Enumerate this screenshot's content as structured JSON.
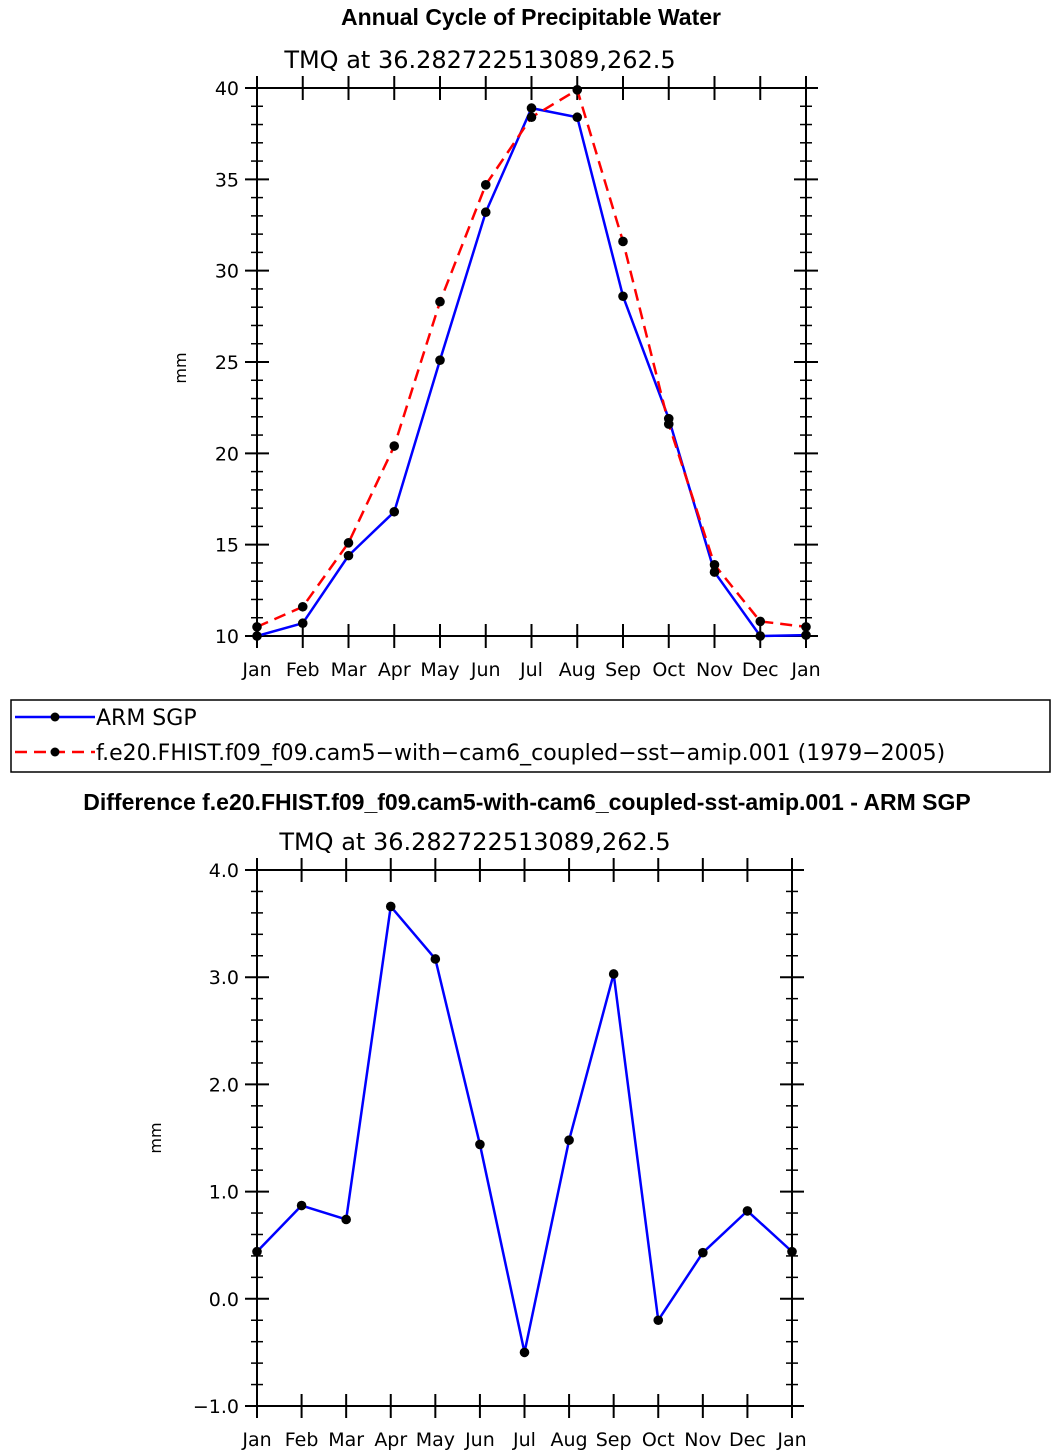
{
  "chart_data": [
    {
      "type": "line",
      "title": "Annual Cycle of Precipitable Water",
      "subtitle": "TMQ at 36.282722513089,262.5",
      "xlabel": "",
      "ylabel": "mm",
      "categories": [
        "Jan",
        "Feb",
        "Mar",
        "Apr",
        "May",
        "Jun",
        "Jul",
        "Aug",
        "Sep",
        "Oct",
        "Nov",
        "Dec",
        "Jan"
      ],
      "ylim": [
        10,
        40
      ],
      "yticks": [
        "10",
        "15",
        "20",
        "25",
        "30",
        "35",
        "40"
      ],
      "ytick_values": [
        10,
        15,
        20,
        25,
        30,
        35,
        40
      ],
      "series": [
        {
          "name": "ARM SGP",
          "color": "#0000ff",
          "style": "solid",
          "values": [
            10.0,
            10.7,
            14.4,
            16.8,
            25.1,
            33.2,
            38.9,
            38.4,
            28.6,
            21.9,
            13.5,
            10.0,
            10.05
          ]
        },
        {
          "name": "f.e20.FHIST.f09_f09.cam5-with-cam6_coupled-sst-amip.001 (1979-2005)",
          "color": "#ff0000",
          "style": "dashed",
          "values": [
            10.5,
            11.6,
            15.1,
            20.4,
            28.3,
            34.7,
            38.4,
            39.9,
            31.6,
            21.6,
            13.9,
            10.8,
            10.5
          ]
        }
      ],
      "legend": {
        "placement": "below",
        "items": [
          "ARM SGP",
          "f.e20.FHIST.f09_f09.cam5−with−cam6_coupled−sst−amip.001 (1979−2005)"
        ]
      }
    },
    {
      "type": "line",
      "title": "Difference f.e20.FHIST.f09_f09.cam5-with-cam6_coupled-sst-amip.001 - ARM SGP",
      "subtitle": "TMQ at 36.282722513089,262.5",
      "xlabel": "",
      "ylabel": "mm",
      "categories": [
        "Jan",
        "Feb",
        "Mar",
        "Apr",
        "May",
        "Jun",
        "Jul",
        "Aug",
        "Sep",
        "Oct",
        "Nov",
        "Dec",
        "Jan"
      ],
      "ylim": [
        -1.0,
        4.0
      ],
      "yticks": [
        "−1.0",
        "0.0",
        "1.0",
        "2.0",
        "3.0",
        "4.0"
      ],
      "ytick_values": [
        -1.0,
        0.0,
        1.0,
        2.0,
        3.0,
        4.0
      ],
      "series": [
        {
          "name": "Difference",
          "color": "#0000ff",
          "style": "solid",
          "values": [
            0.44,
            0.87,
            0.74,
            3.66,
            3.17,
            1.44,
            -0.5,
            1.48,
            3.03,
            -0.2,
            0.43,
            0.82,
            0.44
          ]
        }
      ]
    }
  ]
}
